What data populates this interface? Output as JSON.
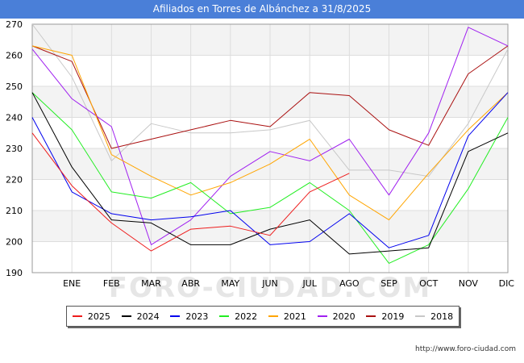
{
  "chart_data": {
    "type": "line",
    "title": "Afiliados en Torres de Albánchez a 31/8/2025",
    "categories": [
      "",
      "ENE",
      "FEB",
      "MAR",
      "ABR",
      "MAY",
      "JUN",
      "JUL",
      "AGO",
      "SEP",
      "OCT",
      "NOV",
      "DIC"
    ],
    "ylim": [
      190,
      270
    ],
    "yticks": [
      190,
      200,
      210,
      220,
      230,
      240,
      250,
      260,
      270
    ],
    "grid": true,
    "legend_position": "bottom",
    "watermark": "FORO-CIUDAD.COM",
    "series": [
      {
        "name": "2025",
        "color": "#ee1c1c",
        "values": [
          235,
          218,
          206,
          197,
          204,
          205,
          202,
          216,
          222,
          null,
          null,
          null,
          null
        ]
      },
      {
        "name": "2024",
        "color": "#000000",
        "values": [
          248,
          224,
          207,
          206,
          199,
          199,
          204,
          207,
          196,
          197,
          198,
          229,
          235
        ]
      },
      {
        "name": "2023",
        "color": "#0000ee",
        "values": [
          240,
          216,
          209,
          207,
          208,
          210,
          199,
          200,
          209,
          198,
          202,
          234,
          248
        ]
      },
      {
        "name": "2022",
        "color": "#22ee22",
        "values": [
          248,
          236,
          216,
          214,
          219,
          209,
          211,
          219,
          210,
          193,
          199,
          217,
          240
        ]
      },
      {
        "name": "2021",
        "color": "#ffa500",
        "values": [
          263,
          260,
          228,
          221,
          215,
          219,
          225,
          233,
          215,
          207,
          222,
          236,
          248
        ]
      },
      {
        "name": "2020",
        "color": "#a020f0",
        "values": [
          262,
          246,
          237,
          199,
          207,
          221,
          229,
          226,
          233,
          215,
          235,
          269,
          263
        ]
      },
      {
        "name": "2019",
        "color": "#aa1111",
        "values": [
          263,
          258,
          230,
          233,
          236,
          239,
          237,
          248,
          247,
          236,
          231,
          254,
          263
        ]
      },
      {
        "name": "2018",
        "color": "#c8c8c8",
        "values": [
          270,
          253,
          226,
          238,
          235,
          235,
          236,
          239,
          223,
          223,
          221,
          238,
          262
        ]
      }
    ]
  },
  "footer": {
    "url": "http://www.foro-ciudad.com"
  }
}
